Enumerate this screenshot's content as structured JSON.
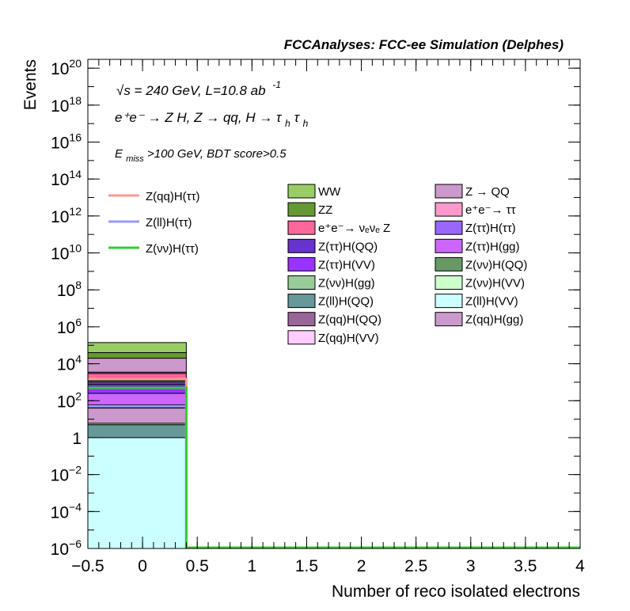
{
  "chart_data": {
    "type": "bar",
    "title": "FCCAnalyses: FCC-ee Simulation (Delphes)",
    "xlabel": "Number of reco isolated electrons",
    "ylabel": "Events",
    "xlim": [
      -0.5,
      4
    ],
    "ylim": [
      1e-06,
      3e+20
    ],
    "y_scale": "log",
    "x_ticks": [
      {
        "v": -0.5,
        "label": "−0.5"
      },
      {
        "v": 0,
        "label": "0"
      },
      {
        "v": 0.5,
        "label": "0.5"
      },
      {
        "v": 1,
        "label": "1"
      },
      {
        "v": 1.5,
        "label": "1.5"
      },
      {
        "v": 2,
        "label": "2"
      },
      {
        "v": 2.5,
        "label": "2.5"
      },
      {
        "v": 3,
        "label": "3"
      },
      {
        "v": 3.5,
        "label": "3.5"
      },
      {
        "v": 4,
        "label": "4"
      }
    ],
    "y_ticks": [
      {
        "exp": -6,
        "base": "10",
        "sup": "−6"
      },
      {
        "exp": -4,
        "base": "10",
        "sup": "−4"
      },
      {
        "exp": -2,
        "base": "10",
        "sup": "−2"
      },
      {
        "exp": 0,
        "base": "1",
        "sup": ""
      },
      {
        "exp": 2,
        "base": "10",
        "sup": "2"
      },
      {
        "exp": 4,
        "base": "10",
        "sup": "4"
      },
      {
        "exp": 6,
        "base": "10",
        "sup": "6"
      },
      {
        "exp": 8,
        "base": "10",
        "sup": "8"
      },
      {
        "exp": 10,
        "base": "10",
        "sup": "10"
      },
      {
        "exp": 12,
        "base": "10",
        "sup": "12"
      },
      {
        "exp": 14,
        "base": "10",
        "sup": "14"
      },
      {
        "exp": 16,
        "base": "10",
        "sup": "16"
      },
      {
        "exp": 18,
        "base": "10",
        "sup": "18"
      },
      {
        "exp": 20,
        "base": "10",
        "sup": "20"
      }
    ],
    "annotations": {
      "line1": "√s = 240 GeV, L=10.8 ab",
      "line1_sup": "-1",
      "line2": "e⁺e⁻ → Z H, Z → qq, H → τ",
      "line2_sub": "h",
      "line2_tau": "τ",
      "line3_base": "E",
      "line3_sub": "miss",
      "line3": ">100 GeV, BDT score>0.5"
    },
    "bin": {
      "low": -0.5,
      "high": 0.4
    },
    "stack": [
      {
        "name": "Z(ll)H(VV)",
        "top": 1.0,
        "color": "#ccffff"
      },
      {
        "name": "Z(ll)H(QQ)",
        "top": 5,
        "color": "#669999"
      },
      {
        "name": "Z(νν)H(VV)",
        "top": 6,
        "color": "#ccffcc"
      },
      {
        "name": "Z(qq)H(gg)",
        "top": 40,
        "color": "#cc99cc"
      },
      {
        "name": "Z(qq)H(VV)",
        "top": 45,
        "color": "#ffccff"
      },
      {
        "name": "Z(qq)H(QQ)",
        "top": 60,
        "color": "#996699"
      },
      {
        "name": "Z(ττ)H(gg)",
        "top": 250,
        "color": "#cc66ff"
      },
      {
        "name": "Z(ττ)H(VV)",
        "top": 500,
        "color": "#9933ff"
      },
      {
        "name": "Z(ττ)H(QQ)",
        "top": 800,
        "color": "#6633cc"
      },
      {
        "name": "Z(ττ)H(ττ)",
        "top": 1000,
        "color": "#9966ff"
      },
      {
        "name": "Z(νν)H(QQ)",
        "top": 1200,
        "color": "#669966"
      },
      {
        "name": "Z(νν)H(gg)",
        "top": 1500,
        "color": "#99cc99"
      },
      {
        "name": "e⁺e⁻ → νₑνₑ Z",
        "top": 3000,
        "color": "#ff6699"
      },
      {
        "name": "e⁺e⁻ → ττ",
        "top": 3500,
        "color": "#ff99cc"
      },
      {
        "name": "Z → QQ",
        "top": 20000,
        "color": "#cc99cc"
      },
      {
        "name": "ZZ",
        "top": 40000,
        "color": "#669933"
      },
      {
        "name": "WW",
        "top": 140000,
        "color": "#99cc66"
      }
    ],
    "signal_lines": [
      {
        "name": "Z(qq)H(ττ)",
        "value": 1500,
        "color": "#ff9999"
      },
      {
        "name": "Z(ll)H(ττ)",
        "value": 50,
        "color": "#9999ff"
      },
      {
        "name": "Z(νν)H(ττ)",
        "value": 500,
        "color": "#33cc33"
      }
    ],
    "legend_signals": [
      "Z(qq)H(ττ)",
      "Z(ll)H(ττ)",
      "Z(νν)H(ττ)"
    ],
    "legend_col1": [
      {
        "name": "WW",
        "color": "#99cc66"
      },
      {
        "name": "ZZ",
        "color": "#669933"
      },
      {
        "name": "e⁺e⁻→ νₑνₑ Z",
        "color": "#ff6699"
      },
      {
        "name": "Z(ττ)H(QQ)",
        "color": "#6633cc"
      },
      {
        "name": "Z(ττ)H(VV)",
        "color": "#9933ff"
      },
      {
        "name": "Z(νν)H(gg)",
        "color": "#99cc99"
      },
      {
        "name": "Z(ll)H(QQ)",
        "color": "#669999"
      },
      {
        "name": "Z(qq)H(QQ)",
        "color": "#996699"
      },
      {
        "name": "Z(qq)H(VV)",
        "color": "#ffccff"
      }
    ],
    "legend_col2": [
      {
        "name": "Z → QQ",
        "color": "#cc99cc"
      },
      {
        "name": "e⁺e⁻→ ττ",
        "color": "#ff99cc"
      },
      {
        "name": "Z(ττ)H(ττ)",
        "color": "#9966ff"
      },
      {
        "name": "Z(ττ)H(gg)",
        "color": "#cc66ff"
      },
      {
        "name": "Z(νν)H(QQ)",
        "color": "#669966"
      },
      {
        "name": "Z(νν)H(VV)",
        "color": "#ccffcc"
      },
      {
        "name": "Z(ll)H(VV)",
        "color": "#ccffff"
      },
      {
        "name": "Z(qq)H(gg)",
        "color": "#cc99cc"
      }
    ],
    "grid": false,
    "legend_position": "top-center"
  }
}
